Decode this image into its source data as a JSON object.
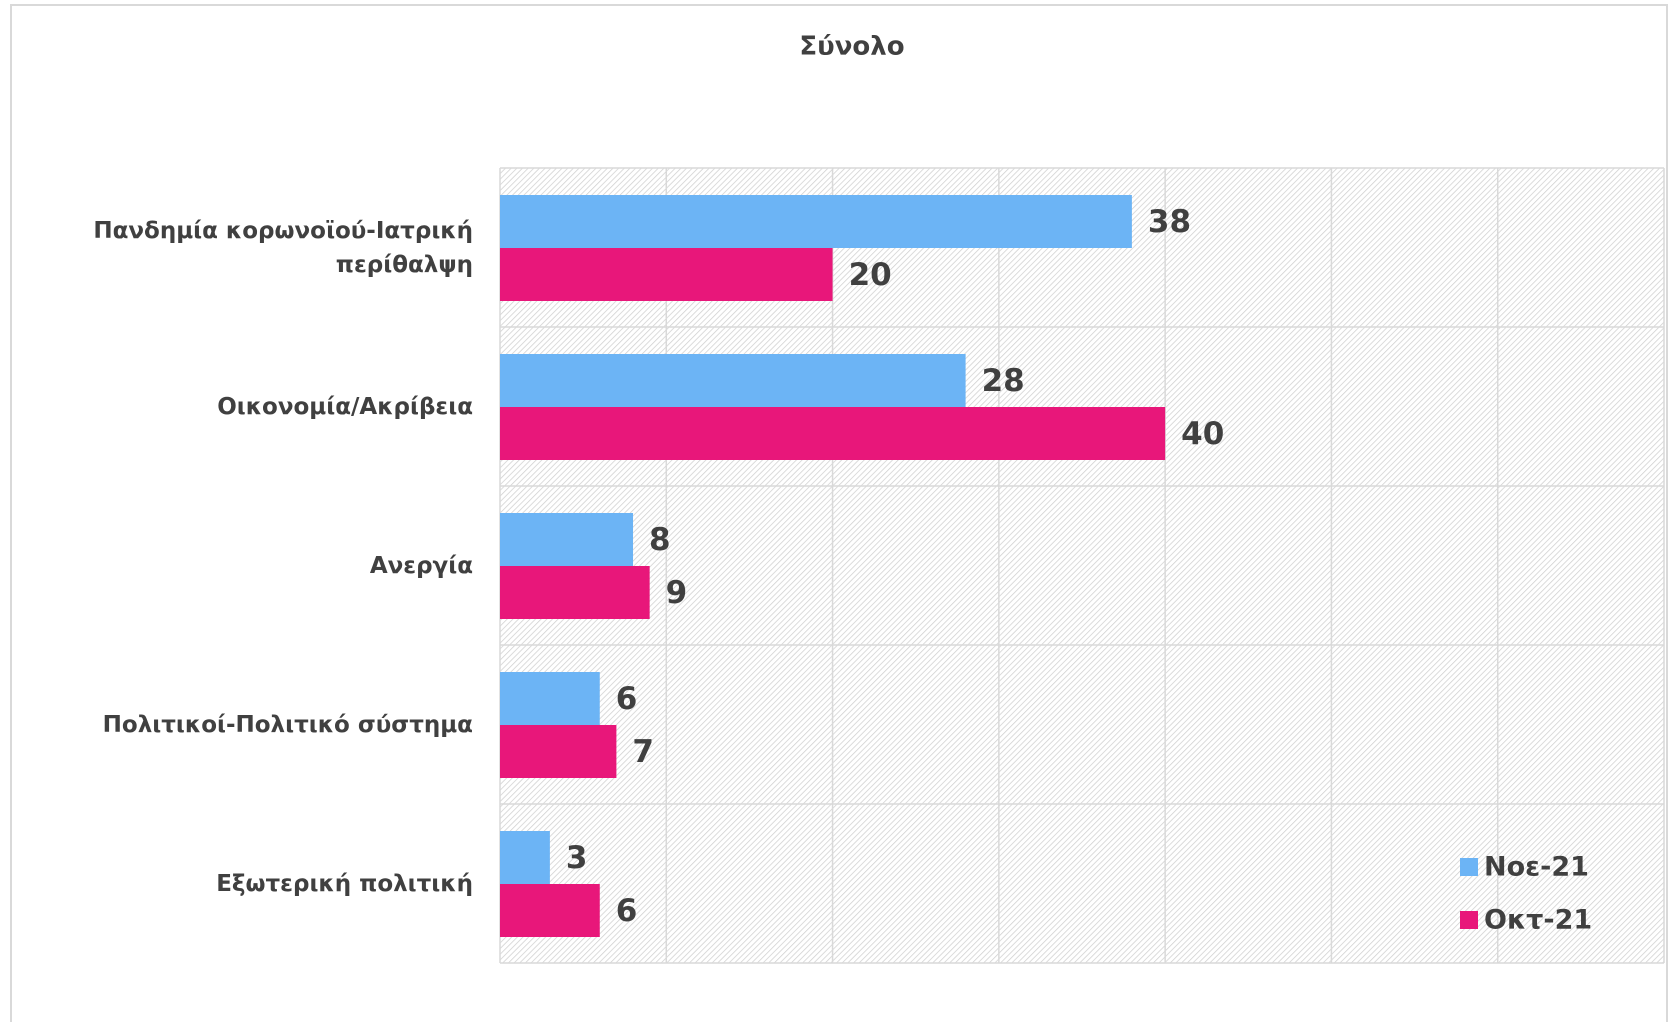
{
  "chart_data": {
    "type": "bar",
    "orientation": "horizontal",
    "title": "Σύνολο",
    "categories": [
      "Πανδημία κορωνοϊού-Ιατρική περίθαλψη",
      "Οικονομία/Ακρίβεια",
      "Ανεργία",
      "Πολιτικοί-Πολιτικό σύστημα",
      "Εξωτερική πολιτική"
    ],
    "series": [
      {
        "name": "Νοε-21",
        "color": "#6cb4f5",
        "values": [
          38,
          28,
          8,
          6,
          3
        ]
      },
      {
        "name": "Οκτ-21",
        "color": "#e8177a",
        "values": [
          20,
          40,
          9,
          7,
          6
        ]
      }
    ],
    "xlim": [
      0,
      70
    ],
    "xticks": [
      0,
      10,
      20,
      30,
      40,
      50,
      60,
      70
    ],
    "grid": true,
    "legend": "lower right"
  }
}
